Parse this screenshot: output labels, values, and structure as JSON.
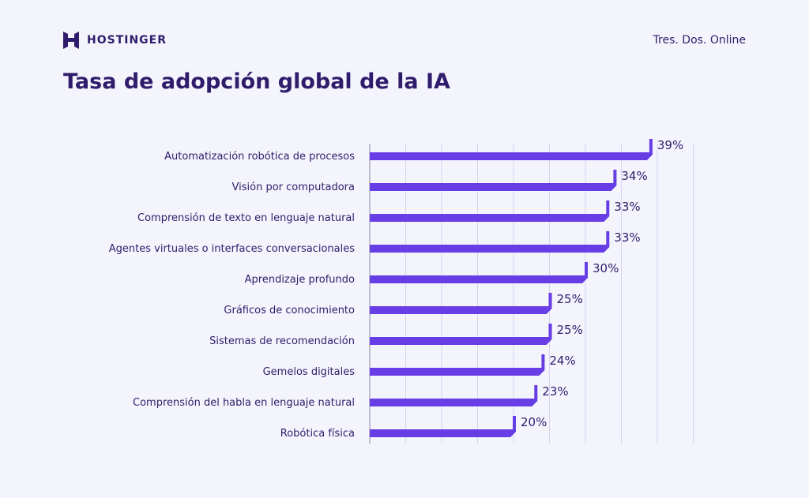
{
  "header": {
    "logo_text": "HOSTINGER",
    "right_text": "Tres. Dos. Online"
  },
  "title": "Tasa de adopción global de la IA",
  "colors": {
    "bar": "#673de6",
    "text": "#2f1c6a",
    "grid": "#d6d3ee",
    "background": "#f4f4fd"
  },
  "chart_data": {
    "type": "bar",
    "orientation": "horizontal",
    "categories": [
      "Automatización robótica de procesos",
      "Visión por computadora",
      "Comprensión de texto en lenguaje natural",
      "Agentes virtuales o interfaces conversacionales",
      "Aprendizaje profundo",
      "Gráficos de conocimiento",
      "Sistemas de recomendación",
      "Gemelos digitales",
      "Comprensión del habla en lenguaje natural",
      "Robótica física"
    ],
    "values": [
      39,
      34,
      33,
      33,
      30,
      25,
      25,
      24,
      23,
      20
    ],
    "data_labels": [
      "39%",
      "34%",
      "33%",
      "33%",
      "30%",
      "25%",
      "25%",
      "24%",
      "23%",
      "20%"
    ],
    "xlim": [
      0,
      45
    ],
    "grid": true,
    "gridlines": [
      0,
      5,
      10,
      15,
      20,
      25,
      30,
      35,
      40,
      45
    ]
  }
}
